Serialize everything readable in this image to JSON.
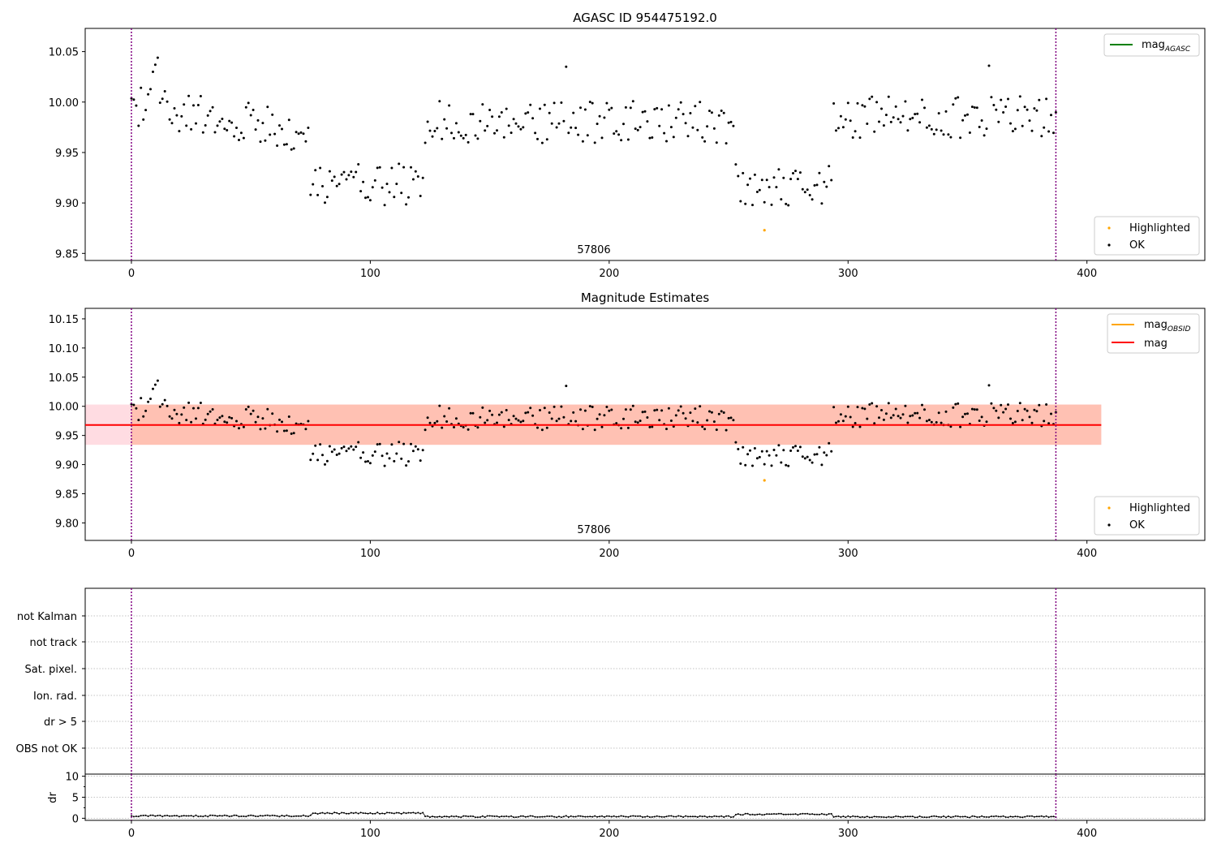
{
  "chart_data": [
    {
      "type": "scatter",
      "title": "AGASC ID 954475192.0",
      "annotation": "57806",
      "xlim": [
        -19.35,
        449.35
      ],
      "ylim": [
        9.843,
        10.073
      ],
      "xticks": [
        "0",
        "100",
        "200",
        "300",
        "400"
      ],
      "yticks": [
        "9.85",
        "9.90",
        "9.95",
        "10.00",
        "10.05"
      ],
      "vlines": [
        0,
        387
      ],
      "grid": false,
      "legend_top": {
        "placement": "top-right",
        "entries": [
          {
            "label": "mag",
            "sub": "AGASC",
            "color": "#008000"
          }
        ]
      },
      "legend_bottom": {
        "placement": "bottom-right",
        "entries": [
          {
            "label": "Highlighted",
            "color": "#ffa500"
          },
          {
            "label": "OK",
            "color": "#000000"
          }
        ]
      },
      "series": [
        {
          "name": "Highlighted",
          "color": "#ffa500",
          "x": [
            265
          ],
          "y": [
            9.873
          ]
        },
        {
          "name": "OK",
          "color": "#000000",
          "profile": "mag",
          "n": 388
        }
      ]
    },
    {
      "type": "scatter",
      "title": "Magnitude Estimates",
      "annotation": "57806",
      "xlim": [
        -19.35,
        449.35
      ],
      "ylim": [
        9.77,
        10.168
      ],
      "xticks": [
        "0",
        "100",
        "200",
        "300",
        "400"
      ],
      "yticks": [
        "9.80",
        "9.85",
        "9.90",
        "9.95",
        "10.00",
        "10.05",
        "10.10",
        "10.15"
      ],
      "vlines": [
        0,
        387
      ],
      "grid": false,
      "legend_top": {
        "placement": "top-right",
        "entries": [
          {
            "label": "mag",
            "sub": "OBSID",
            "color": "#ffa500"
          },
          {
            "label": "mag",
            "color": "#ff0000"
          }
        ]
      },
      "legend_bottom": {
        "placement": "bottom-right",
        "entries": [
          {
            "label": "Highlighted",
            "color": "#ffa500"
          },
          {
            "label": "OK",
            "color": "#000000"
          }
        ]
      },
      "mag_line": {
        "value": 9.968,
        "x": [
          -19.35,
          406
        ],
        "color": "#ff0000"
      },
      "mag_band": {
        "low": 9.934,
        "high": 10.003,
        "x": [
          -19.35,
          406
        ],
        "color": "#ffc0cb"
      },
      "obsid_band": {
        "low": 9.934,
        "high": 10.003,
        "x": [
          0,
          406
        ],
        "color": "#ffa07a"
      },
      "series": [
        {
          "name": "Highlighted",
          "color": "#ffa500",
          "x": [
            265
          ],
          "y": [
            9.873
          ]
        },
        {
          "name": "OK",
          "color": "#000000",
          "profile": "mag",
          "n": 388
        }
      ]
    },
    {
      "type": "scatter",
      "xlim": [
        -19.35,
        449.35
      ],
      "flag_labels": [
        "not Kalman",
        "not track",
        "Sat. pixel.",
        "Ion. rad.",
        "dr > 5",
        "OBS not OK"
      ],
      "vlines": [
        0,
        387
      ],
      "grid": true
    },
    {
      "type": "line",
      "ylabel": "dr",
      "xlim": [
        -19.35,
        449.35
      ],
      "ylim": [
        -0.5,
        10.5
      ],
      "xticks": [
        "0",
        "100",
        "200",
        "300",
        "400"
      ],
      "yticks": [
        "0",
        "5",
        "10"
      ],
      "vlines": [
        0,
        387
      ],
      "grid": true,
      "series": [
        {
          "name": "dr",
          "color": "#000000",
          "profile": "dr",
          "n": 388,
          "segments": [
            {
              "from": 0,
              "to": 75,
              "value": 0.55
            },
            {
              "from": 76,
              "to": 122,
              "value": 1.2
            },
            {
              "from": 123,
              "to": 252,
              "value": 0.4
            },
            {
              "from": 253,
              "to": 293,
              "value": 0.95
            },
            {
              "from": 294,
              "to": 387,
              "value": 0.35
            }
          ]
        }
      ]
    }
  ],
  "colors": {
    "vline": "#800080",
    "grid": "#b0b0b0",
    "axis": "#000000"
  }
}
